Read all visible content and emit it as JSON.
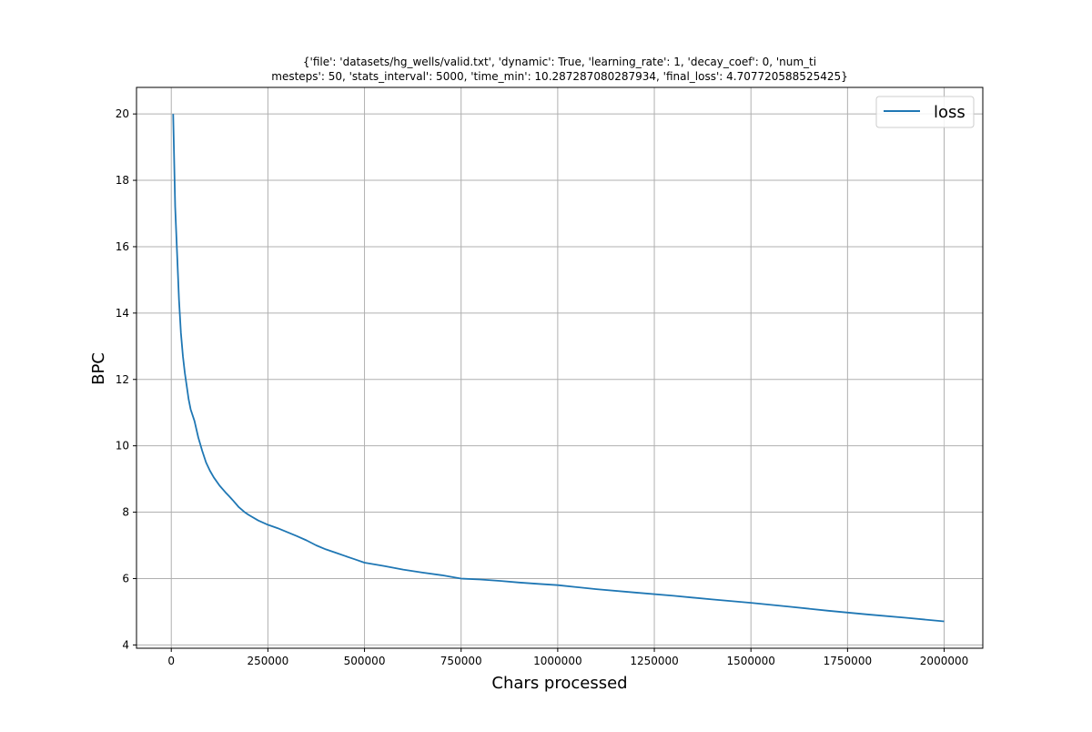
{
  "chart_data": {
    "type": "line",
    "title_lines": [
      "{'file': 'datasets/hg_wells/valid.txt', 'dynamic': True, 'learning_rate': 1, 'decay_coef': 0, 'num_ti",
      "mesteps': 50, 'stats_interval': 5000, 'time_min': 10.287287080287934, 'final_loss': 4.707720588525425}"
    ],
    "xlabel": "Chars processed",
    "ylabel": "BPC",
    "xlim": [
      -90000,
      2100000
    ],
    "ylim": [
      3.9,
      20.8
    ],
    "x_ticks": [
      0,
      250000,
      500000,
      750000,
      1000000,
      1250000,
      1500000,
      1750000,
      2000000
    ],
    "x_tick_labels": [
      "0",
      "250000",
      "500000",
      "750000",
      "1000000",
      "1250000",
      "1500000",
      "1750000",
      "2000000"
    ],
    "y_ticks": [
      4,
      6,
      8,
      10,
      12,
      14,
      16,
      18,
      20
    ],
    "y_tick_labels": [
      "4",
      "6",
      "8",
      "10",
      "12",
      "14",
      "16",
      "18",
      "20"
    ],
    "grid": true,
    "legend_position": "upper-right",
    "series": [
      {
        "name": "loss",
        "color": "#1f77b4",
        "x": [
          5000,
          10000,
          15000,
          20000,
          25000,
          30000,
          35000,
          40000,
          45000,
          50000,
          60000,
          70000,
          80000,
          90000,
          100000,
          110000,
          125000,
          140000,
          150000,
          160000,
          175000,
          190000,
          200000,
          225000,
          250000,
          275000,
          300000,
          325000,
          350000,
          375000,
          400000,
          425000,
          450000,
          475000,
          500000,
          550000,
          600000,
          650000,
          700000,
          750000,
          800000,
          850000,
          900000,
          950000,
          1000000,
          1100000,
          1200000,
          1300000,
          1400000,
          1500000,
          1600000,
          1700000,
          1800000,
          1900000,
          2000000
        ],
        "values": [
          20.0,
          17.2,
          15.8,
          14.4,
          13.4,
          12.7,
          12.2,
          11.8,
          11.4,
          11.1,
          10.75,
          10.25,
          9.85,
          9.5,
          9.25,
          9.05,
          8.8,
          8.6,
          8.48,
          8.35,
          8.15,
          8.0,
          7.92,
          7.75,
          7.62,
          7.52,
          7.4,
          7.28,
          7.15,
          7.0,
          6.88,
          6.78,
          6.68,
          6.58,
          6.48,
          6.38,
          6.27,
          6.18,
          6.1,
          6.0,
          5.97,
          5.93,
          5.88,
          5.84,
          5.8,
          5.68,
          5.58,
          5.48,
          5.37,
          5.27,
          5.15,
          5.03,
          4.92,
          4.82,
          4.71
        ]
      }
    ]
  }
}
